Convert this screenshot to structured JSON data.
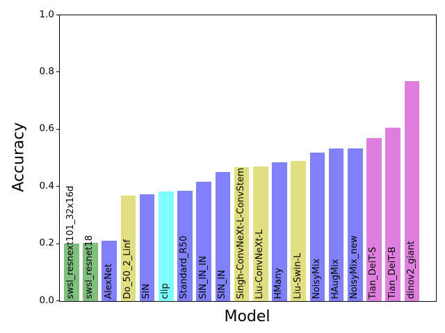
{
  "figure": {
    "ylabel": "Accuracy",
    "xlabel": "Model"
  },
  "palette": {
    "green": "#80bf80",
    "blue": "#8080f8",
    "yellow": "#dfdf80",
    "cyan": "#80ffff",
    "magenta": "#df80df",
    "axis": "#000000",
    "background": "#ffffff"
  },
  "chart_data": {
    "type": "bar",
    "title": "",
    "xlabel": "Model",
    "ylabel": "Accuracy",
    "ylim": [
      0.0,
      1.0
    ],
    "yticks": [
      0.0,
      0.2,
      0.4,
      0.6,
      0.8,
      1.0
    ],
    "grid": false,
    "legend": false,
    "bar_label_rotation": 90,
    "categories": [
      "swsl_resnext101_32x16d",
      "swsl_resnet18",
      "AlexNet",
      "Do_50_2_Linf",
      "SIN",
      "clip",
      "Standard_R50",
      "SIN_IN_IN",
      "SIN_IN",
      "Singh-ConvNeXt-L-ConvStem",
      "Liu-ConvNeXt-L",
      "HMany",
      "Liu-Swin-L",
      "NoisyMix",
      "HAugMix",
      "NoisyMix_new",
      "Tian_DeiT-S",
      "Tian_DeiT-B",
      "dinov2_giant"
    ],
    "values": [
      0.202,
      0.205,
      0.21,
      0.369,
      0.373,
      0.384,
      0.387,
      0.417,
      0.452,
      0.468,
      0.472,
      0.485,
      0.491,
      0.52,
      0.535,
      0.535,
      0.57,
      0.607,
      0.77
    ],
    "bar_colors": [
      "#80bf80",
      "#80bf80",
      "#8080f8",
      "#dfdf80",
      "#8080f8",
      "#80ffff",
      "#8080f8",
      "#8080f8",
      "#8080f8",
      "#dfdf80",
      "#dfdf80",
      "#8080f8",
      "#dfdf80",
      "#8080f8",
      "#8080f8",
      "#8080f8",
      "#df80df",
      "#df80df",
      "#df80df"
    ]
  }
}
